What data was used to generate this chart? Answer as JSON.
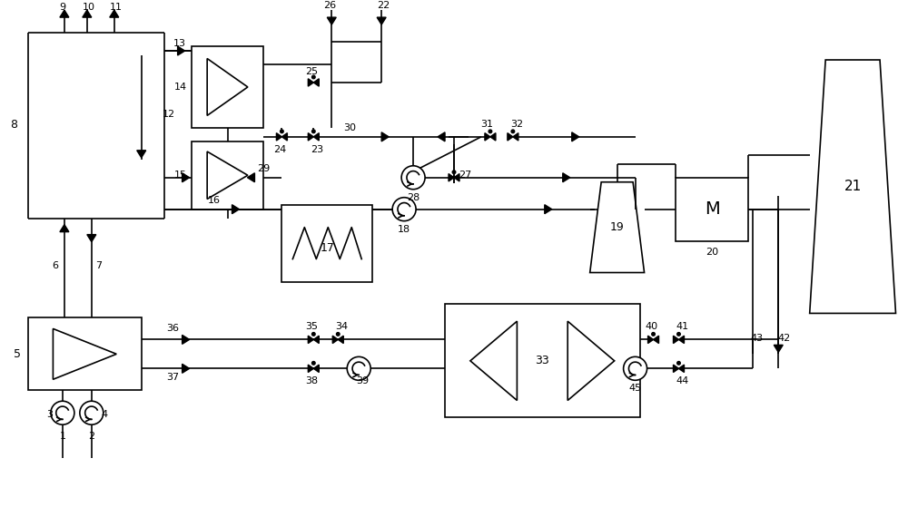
{
  "bg_color": "#ffffff",
  "line_color": "#000000",
  "figsize": [
    10.0,
    5.59
  ],
  "dpi": 100,
  "lw": 1.2
}
